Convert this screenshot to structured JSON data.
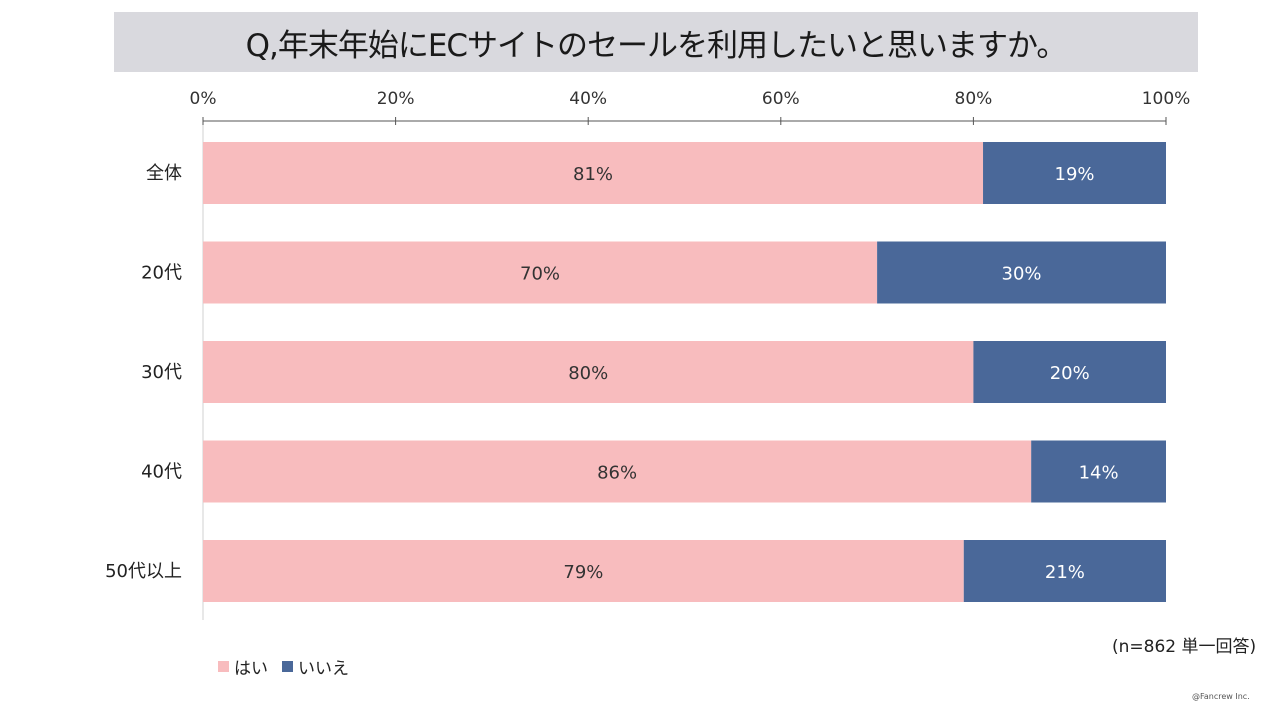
{
  "title": "Q,年末年始にECサイトのセールを利用したいと思いますか。",
  "note": "(n=862 単一回答)",
  "copyright": "@Fancrew Inc.",
  "colors": {
    "yes": "#f8bcbe",
    "no": "#4a6899",
    "title_band": "#d9d9de"
  },
  "legend": [
    {
      "label": "はい",
      "color": "#f8bcbe"
    },
    {
      "label": "いいえ",
      "color": "#4a6899"
    }
  ],
  "chart_data": {
    "type": "bar",
    "orientation": "horizontal",
    "stacked": true,
    "categories": [
      "全体",
      "20代",
      "30代",
      "40代",
      "50代以上"
    ],
    "series": [
      {
        "name": "はい",
        "values": [
          81,
          70,
          80,
          86,
          79
        ],
        "labels": [
          "81%",
          "70%",
          "80%",
          "86%",
          "79%"
        ],
        "color": "#f8bcbe"
      },
      {
        "name": "いいえ",
        "values": [
          19,
          30,
          20,
          14,
          21
        ],
        "labels": [
          "19%",
          "30%",
          "20%",
          "14%",
          "21%"
        ],
        "color": "#4a6899"
      }
    ],
    "xlim": [
      0,
      100
    ],
    "xticks": [
      "0%",
      "20%",
      "40%",
      "60%",
      "80%",
      "100%"
    ],
    "xaxis_position": "top",
    "legend_position": "bottom-left"
  }
}
